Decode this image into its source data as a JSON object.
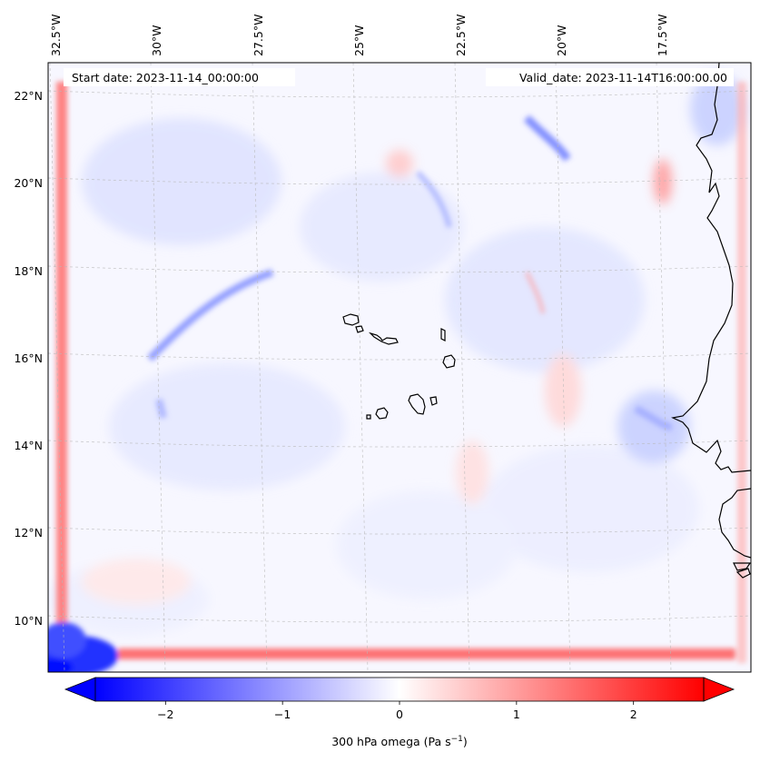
{
  "header": {
    "start_date": "Start date: 2023-11-14_00:00:00",
    "valid_date": "Valid_date: 2023-11-14T16:00:00.00"
  },
  "map": {
    "variable": "300 hPa omega",
    "lon_labels": [
      "32.5°W",
      "30°W",
      "27.5°W",
      "25°W",
      "22.5°W",
      "20°W",
      "17.5°W"
    ],
    "lat_labels": [
      "22°N",
      "20°N",
      "18°N",
      "16°N",
      "14°N",
      "12°N",
      "10°N"
    ],
    "features": [
      "coastline-west-africa",
      "cape-verde-islands"
    ],
    "colormap": "bwr",
    "colors": {
      "negative": "#0000ff",
      "zero": "#ffffff",
      "positive": "#ff0000",
      "coast": "#000000"
    }
  },
  "colorbar": {
    "tick_labels": [
      "−2",
      "−1",
      "0",
      "1",
      "2"
    ],
    "tick_values": [
      -2,
      -1,
      0,
      1,
      2
    ],
    "range": [
      -2.6,
      2.6
    ],
    "label_main": "300 hPa omega (Pa s",
    "label_exp": "−1",
    "label_close": ")"
  }
}
